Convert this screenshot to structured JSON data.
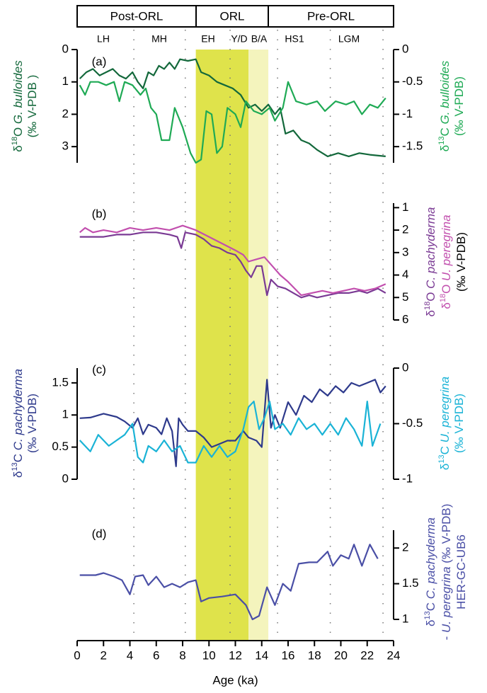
{
  "header": {
    "periods": [
      "Post-ORL",
      "ORL",
      "Pre-ORL"
    ],
    "subperiods": [
      "LH",
      "MH",
      "EH",
      "Y/D",
      "B/A",
      "HS1",
      "LGM"
    ]
  },
  "x_axis": {
    "label": "Age (ka)",
    "xlim": [
      0,
      24
    ],
    "xticks": [
      0,
      2,
      4,
      6,
      8,
      10,
      12,
      14,
      16,
      18,
      20,
      22,
      24
    ],
    "highlight_spans": [
      {
        "start": 9,
        "end": 13,
        "color": "#dfe34b"
      },
      {
        "start": 13,
        "end": 14.5,
        "color": "#f4f4bd"
      }
    ],
    "reference_lines": [
      4.3,
      8.2,
      11.6,
      15.2,
      19.2,
      23.2
    ]
  },
  "chart_data": [
    {
      "type": "line",
      "panel_label": "(a)",
      "ylim": [
        3.5,
        0
      ],
      "yticks": [
        0,
        1,
        2,
        3
      ],
      "y2lim": [
        -1.75,
        0
      ],
      "y2ticks": [
        0,
        -0.5,
        -1,
        -1.5
      ],
      "ylabel": [
        {
          "color": "#13683b",
          "segments": [
            {
              "text": "δ"
            },
            {
              "text": "18",
              "style": "sup"
            },
            {
              "text": "O "
            },
            {
              "text": "G. bulloides",
              "style": "i"
            }
          ]
        },
        {
          "color": "#13683b",
          "segments": [
            {
              "text": "(‰ V-PDB )"
            }
          ]
        }
      ],
      "y2label": [
        {
          "color": "#1faa55",
          "segments": [
            {
              "text": "δ"
            },
            {
              "text": "13",
              "style": "sup"
            },
            {
              "text": "C "
            },
            {
              "text": "G. bulloides",
              "style": "i"
            }
          ]
        },
        {
          "color": "#1faa55",
          "segments": [
            {
              "text": "(‰ V-PDB)"
            }
          ]
        }
      ],
      "series": [
        {
          "color": "#13683b",
          "axis": "y",
          "x": [
            0.2,
            0.7,
            1.2,
            1.7,
            2.2,
            2.7,
            3.2,
            3.7,
            4.2,
            4.6,
            5,
            5.4,
            5.8,
            6.2,
            6.6,
            7,
            7.4,
            7.8,
            8.4,
            9,
            9.4,
            10,
            10.6,
            11.2,
            11.8,
            12.4,
            13,
            13.5,
            14,
            14.5,
            15,
            15.4,
            15.8,
            16.4,
            17,
            17.6,
            18.2,
            19,
            19.8,
            20.6,
            21.4,
            22.2,
            23.4
          ],
          "values": [
            0.9,
            0.7,
            0.6,
            0.8,
            0.7,
            0.6,
            0.8,
            0.9,
            0.7,
            1.0,
            1.2,
            0.7,
            0.8,
            0.5,
            0.6,
            0.4,
            0.6,
            0.3,
            0.35,
            0.3,
            0.7,
            0.8,
            1.0,
            1.1,
            1.2,
            1.4,
            1.8,
            1.7,
            1.9,
            1.7,
            2.0,
            1.8,
            2.6,
            2.5,
            2.8,
            2.9,
            3.1,
            3.3,
            3.2,
            3.3,
            3.2,
            3.25,
            3.3
          ]
        },
        {
          "color": "#1faa55",
          "axis": "y2",
          "x": [
            0.2,
            0.6,
            1,
            1.6,
            2.2,
            2.8,
            3.2,
            3.6,
            4.2,
            4.8,
            5.2,
            5.6,
            6,
            6.4,
            7,
            7.4,
            8,
            8.6,
            9,
            9.4,
            9.8,
            10.2,
            10.6,
            11,
            11.4,
            12,
            12.4,
            12.8,
            13.4,
            14,
            14.6,
            15,
            15.6,
            16,
            16.6,
            17.4,
            18.2,
            18.8,
            19.6,
            20.4,
            21,
            21.6,
            22.2,
            22.8,
            23.4
          ],
          "values": [
            -0.55,
            -0.7,
            -0.5,
            -0.5,
            -0.55,
            -0.5,
            -0.8,
            -0.5,
            -0.55,
            -0.7,
            -0.6,
            -0.9,
            -1.0,
            -1.4,
            -1.4,
            -0.9,
            -1.2,
            -1.6,
            -1.75,
            -1.7,
            -0.95,
            -1.0,
            -1.6,
            -1.5,
            -0.9,
            -1.0,
            -1.2,
            -0.8,
            -0.95,
            -1.0,
            -0.9,
            -1.1,
            -0.9,
            -0.5,
            -0.8,
            -0.85,
            -0.8,
            -0.95,
            -0.8,
            -0.85,
            -0.8,
            -1.0,
            -0.85,
            -0.9,
            -0.75
          ]
        }
      ]
    },
    {
      "type": "line",
      "panel_label": "(b)",
      "y2lim": [
        6,
        0.8
      ],
      "y2ticks": [
        1,
        2,
        3,
        4,
        5,
        6
      ],
      "y2label": [
        {
          "color": "#7a3a94",
          "segments": [
            {
              "text": "δ"
            },
            {
              "text": "18",
              "style": "sup"
            },
            {
              "text": "O "
            },
            {
              "text": "C. pachyderma",
              "style": "i"
            }
          ]
        },
        {
          "color": "#c24fae",
          "segments": [
            {
              "text": "δ"
            },
            {
              "text": "18",
              "style": "sup"
            },
            {
              "text": "O "
            },
            {
              "text": "U. peregrina",
              "style": "i"
            }
          ]
        },
        {
          "color": "#000000",
          "segments": [
            {
              "text": "(‰ V-PDB)"
            }
          ]
        }
      ],
      "series": [
        {
          "color": "#7a3a94",
          "axis": "y2",
          "x": [
            0.2,
            1,
            2,
            3,
            4,
            5,
            6,
            7,
            7.6,
            7.9,
            8.2,
            9,
            9.6,
            10.2,
            10.8,
            11.4,
            12,
            12.4,
            12.8,
            13.2,
            13.6,
            14,
            14.4,
            14.7,
            15.2,
            15.8,
            16.4,
            17,
            17.6,
            18.2,
            19,
            19.8,
            20.6,
            21.4,
            22,
            22.8,
            23.4
          ],
          "values": [
            2.3,
            2.3,
            2.3,
            2.2,
            2.2,
            2.1,
            2.1,
            2.2,
            2.3,
            2.8,
            2.1,
            2.2,
            2.4,
            2.7,
            2.8,
            3.0,
            3.1,
            3.4,
            3.8,
            4.1,
            3.6,
            3.6,
            4.9,
            4.2,
            4.5,
            4.6,
            4.8,
            5.0,
            4.9,
            5.0,
            4.9,
            4.8,
            4.8,
            4.7,
            4.8,
            4.6,
            4.8
          ]
        },
        {
          "color": "#c24fae",
          "axis": "y2",
          "x": [
            0.2,
            0.6,
            1.2,
            2,
            3,
            4,
            5,
            6,
            7,
            8,
            9,
            10,
            11,
            12,
            12.6,
            13,
            13.6,
            14.2,
            14.8,
            15.4,
            16,
            17,
            17.8,
            18.6,
            19.4,
            20.2,
            21,
            21.8,
            22.6,
            23.4
          ],
          "values": [
            2.1,
            1.9,
            2.1,
            2.0,
            2.1,
            1.9,
            2.0,
            1.9,
            2.0,
            1.8,
            2.0,
            2.3,
            2.6,
            2.9,
            3.1,
            3.4,
            3.3,
            3.2,
            3.6,
            4.0,
            4.3,
            4.9,
            4.8,
            4.7,
            4.8,
            4.7,
            4.6,
            4.7,
            4.6,
            4.4
          ]
        }
      ]
    },
    {
      "type": "line",
      "panel_label": "(c)",
      "ylim": [
        0,
        1.73
      ],
      "yticks": [
        0,
        0.5,
        1,
        1.5
      ],
      "y2lim": [
        -1,
        0
      ],
      "y2ticks": [
        0,
        -0.5,
        -1
      ],
      "ylabel": [
        {
          "color": "#2e3a8c",
          "segments": [
            {
              "text": "δ"
            },
            {
              "text": "13",
              "style": "sup"
            },
            {
              "text": "C "
            },
            {
              "text": "C. pachyderma",
              "style": "i"
            }
          ]
        },
        {
          "color": "#2e3a8c",
          "segments": [
            {
              "text": "(‰ V-PDB)"
            }
          ]
        }
      ],
      "y2label": [
        {
          "color": "#1ab3d6",
          "segments": [
            {
              "text": "δ"
            },
            {
              "text": "13",
              "style": "sup"
            },
            {
              "text": "C "
            },
            {
              "text": "U. peregrina",
              "style": "i"
            }
          ]
        },
        {
          "color": "#1ab3d6",
          "segments": [
            {
              "text": "(‰ V-PDB)"
            }
          ]
        }
      ],
      "series": [
        {
          "color": "#2e3a8c",
          "axis": "y",
          "x": [
            0.2,
            1,
            2,
            3,
            3.6,
            4.2,
            4.6,
            5,
            5.4,
            6,
            6.4,
            6.8,
            7.2,
            7.5,
            7.7,
            8,
            8.4,
            9,
            9.6,
            10.2,
            10.8,
            11.4,
            12,
            12.6,
            13,
            13.6,
            14,
            14.4,
            14.7,
            15,
            15.4,
            16,
            16.6,
            17.2,
            17.8,
            18.4,
            19,
            19.6,
            20.2,
            20.8,
            21.4,
            22,
            22.6,
            23,
            23.4
          ],
          "values": [
            0.95,
            0.96,
            1.02,
            0.97,
            0.9,
            0.8,
            0.95,
            0.7,
            0.85,
            0.8,
            0.7,
            0.95,
            0.75,
            0.2,
            0.95,
            0.85,
            0.75,
            0.75,
            0.65,
            0.5,
            0.55,
            0.6,
            0.6,
            0.75,
            0.65,
            0.6,
            0.5,
            1.55,
            0.8,
            1.0,
            0.8,
            1.2,
            1.0,
            1.3,
            1.2,
            1.4,
            1.3,
            1.45,
            1.35,
            1.5,
            1.45,
            1.5,
            1.55,
            1.35,
            1.45
          ]
        },
        {
          "color": "#1ab3d6",
          "axis": "y2",
          "x": [
            0.2,
            1,
            1.6,
            2.4,
            3,
            3.6,
            4.2,
            4.6,
            5,
            5.4,
            6,
            6.6,
            7.2,
            7.8,
            8.4,
            9,
            9.6,
            10.2,
            10.8,
            11.4,
            12,
            12.6,
            13,
            13.4,
            13.8,
            14.2,
            14.6,
            15,
            15.6,
            16.2,
            16.8,
            17.4,
            18,
            18.6,
            19.2,
            19.8,
            20.4,
            21,
            21.6,
            22,
            22.4,
            23
          ],
          "values": [
            -0.65,
            -0.75,
            -0.6,
            -0.7,
            -0.65,
            -0.6,
            -0.5,
            -0.8,
            -0.85,
            -0.7,
            -0.75,
            -0.65,
            -0.75,
            -0.7,
            -0.85,
            -0.85,
            -0.7,
            -0.8,
            -0.7,
            -0.8,
            -0.75,
            -0.55,
            -0.35,
            -0.3,
            -0.55,
            -0.45,
            -0.3,
            -0.55,
            -0.5,
            -0.6,
            -0.45,
            -0.55,
            -0.5,
            -0.6,
            -0.5,
            -0.6,
            -0.45,
            -0.55,
            -0.7,
            -0.3,
            -0.7,
            -0.5
          ]
        }
      ]
    },
    {
      "type": "line",
      "panel_label": "(d)",
      "y2lim": [
        1,
        2.25
      ],
      "y2ticks": [
        1,
        1.5,
        2
      ],
      "y2label": [
        {
          "color": "#4a4fa6",
          "segments": [
            {
              "text": "δ"
            },
            {
              "text": "13",
              "style": "sup"
            },
            {
              "text": "C "
            },
            {
              "text": "C. pachyderma",
              "style": "i"
            }
          ]
        },
        {
          "color": "#4a4fa6",
          "segments": [
            {
              "text": "- "
            },
            {
              "text": "U. peregrina",
              "style": "i"
            },
            {
              "text": " (‰ V-PDB)"
            }
          ]
        },
        {
          "color": "#4a4fa6",
          "segments": [
            {
              "text": "HER-GC-UB6"
            }
          ]
        }
      ],
      "series": [
        {
          "color": "#4a4fa6",
          "axis": "y2",
          "x": [
            0.2,
            1.4,
            2,
            2.8,
            3.4,
            4,
            4.4,
            5,
            5.4,
            6,
            6.6,
            7.2,
            7.8,
            8.4,
            9,
            9.4,
            10,
            11,
            12,
            12.8,
            13.3,
            13.8,
            14.4,
            15,
            15.6,
            16.2,
            16.8,
            17.6,
            18.2,
            19,
            19.4,
            20,
            20.6,
            21,
            21.6,
            22.2,
            22.8
          ],
          "values": [
            1.62,
            1.62,
            1.65,
            1.6,
            1.55,
            1.35,
            1.6,
            1.62,
            1.48,
            1.6,
            1.45,
            1.5,
            1.45,
            1.52,
            1.55,
            1.25,
            1.3,
            1.32,
            1.35,
            1.2,
            1.0,
            1.05,
            1.45,
            1.2,
            1.5,
            1.4,
            1.78,
            1.8,
            1.8,
            1.95,
            1.75,
            1.9,
            1.85,
            2.05,
            1.75,
            2.05,
            1.85
          ]
        }
      ]
    }
  ]
}
